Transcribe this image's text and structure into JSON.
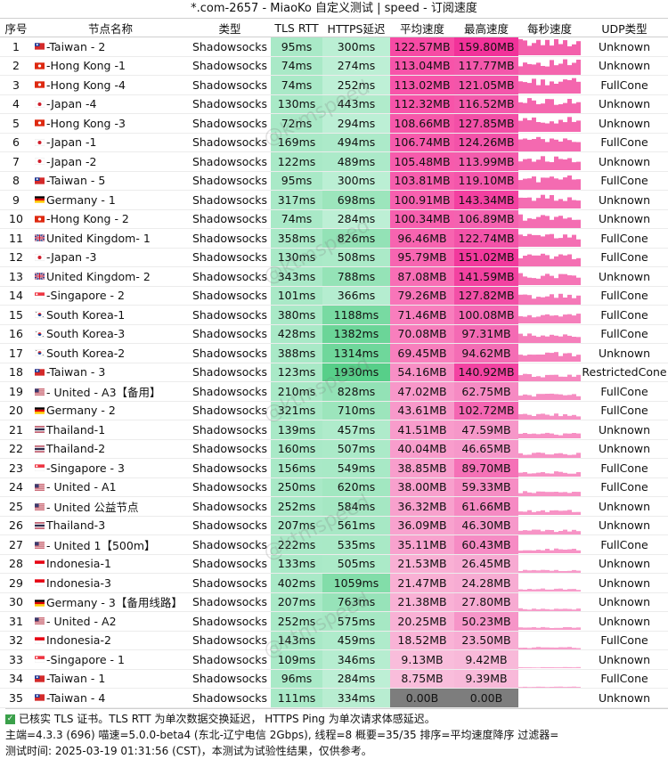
{
  "title": "*.com-2657 - MiaoKo 自定义测试 | speed - 订阅速度",
  "headers": [
    "序号",
    "节点名称",
    "类型",
    "TLS RTT",
    "HTTPS延迟",
    "平均速度",
    "最高速度",
    "每秒速度",
    "UDP类型"
  ],
  "watermark": "@ktmspeed",
  "rows": [
    {
      "idx": "1",
      "flag": "tw",
      "name": "-Taiwan - 2",
      "type": "Shadowsocks",
      "tls": "95ms",
      "https": "300ms",
      "avg": "122.57MB",
      "max": "159.80MB",
      "udp": "Unknown",
      "h": 0.1,
      "a": 1.0,
      "m": 1.0
    },
    {
      "idx": "2",
      "flag": "hk",
      "name": "-Hong Kong -1",
      "type": "Shadowsocks",
      "tls": "74ms",
      "https": "274ms",
      "avg": "113.04MB",
      "max": "117.77MB",
      "udp": "Unknown",
      "h": 0.08,
      "a": 0.92,
      "m": 0.74
    },
    {
      "idx": "3",
      "flag": "hk",
      "name": "-Hong Kong -4",
      "type": "Shadowsocks",
      "tls": "74ms",
      "https": "252ms",
      "avg": "113.02MB",
      "max": "121.05MB",
      "udp": "FullCone",
      "h": 0.07,
      "a": 0.92,
      "m": 0.76
    },
    {
      "idx": "4",
      "flag": "jp",
      "name": "-Japan -4",
      "type": "Shadowsocks",
      "tls": "130ms",
      "https": "443ms",
      "avg": "112.32MB",
      "max": "116.52MB",
      "udp": "Unknown",
      "h": 0.2,
      "a": 0.92,
      "m": 0.73
    },
    {
      "idx": "5",
      "flag": "hk",
      "name": "-Hong Kong -3",
      "type": "Shadowsocks",
      "tls": "72ms",
      "https": "294ms",
      "avg": "108.66MB",
      "max": "127.85MB",
      "udp": "Unknown",
      "h": 0.09,
      "a": 0.89,
      "m": 0.8
    },
    {
      "idx": "6",
      "flag": "jp",
      "name": "-Japan -1",
      "type": "Shadowsocks",
      "tls": "169ms",
      "https": "494ms",
      "avg": "106.74MB",
      "max": "124.26MB",
      "udp": "FullCone",
      "h": 0.23,
      "a": 0.87,
      "m": 0.78
    },
    {
      "idx": "7",
      "flag": "jp",
      "name": "-Japan -2",
      "type": "Shadowsocks",
      "tls": "122ms",
      "https": "489ms",
      "avg": "105.48MB",
      "max": "113.99MB",
      "udp": "Unknown",
      "h": 0.23,
      "a": 0.86,
      "m": 0.71
    },
    {
      "idx": "8",
      "flag": "tw",
      "name": "-Taiwan - 5",
      "type": "Shadowsocks",
      "tls": "95ms",
      "https": "300ms",
      "avg": "103.81MB",
      "max": "119.10MB",
      "udp": "FullCone",
      "h": 0.1,
      "a": 0.85,
      "m": 0.75
    },
    {
      "idx": "9",
      "flag": "de",
      "name": "Germany - 1",
      "type": "Shadowsocks",
      "tls": "317ms",
      "https": "698ms",
      "avg": "100.91MB",
      "max": "143.34MB",
      "udp": "Unknown",
      "h": 0.38,
      "a": 0.82,
      "m": 0.9
    },
    {
      "idx": "10",
      "flag": "hk",
      "name": "-Hong Kong - 2",
      "type": "Shadowsocks",
      "tls": "74ms",
      "https": "284ms",
      "avg": "100.34MB",
      "max": "106.89MB",
      "udp": "Unknown",
      "h": 0.08,
      "a": 0.82,
      "m": 0.67
    },
    {
      "idx": "11",
      "flag": "gb",
      "name": "United Kingdom- 1",
      "type": "Shadowsocks",
      "tls": "358ms",
      "https": "826ms",
      "avg": "96.46MB",
      "max": "122.74MB",
      "udp": "FullCone",
      "h": 0.46,
      "a": 0.79,
      "m": 0.77
    },
    {
      "idx": "12",
      "flag": "jp",
      "name": "-Japan -3",
      "type": "Shadowsocks",
      "tls": "130ms",
      "https": "508ms",
      "avg": "95.79MB",
      "max": "151.02MB",
      "udp": "FullCone",
      "h": 0.24,
      "a": 0.78,
      "m": 0.95
    },
    {
      "idx": "13",
      "flag": "gb",
      "name": "United Kingdom- 2",
      "type": "Shadowsocks",
      "tls": "343ms",
      "https": "788ms",
      "avg": "87.08MB",
      "max": "141.59MB",
      "udp": "Unknown",
      "h": 0.44,
      "a": 0.71,
      "m": 0.89
    },
    {
      "idx": "14",
      "flag": "sg",
      "name": "-Singapore - 2",
      "type": "Shadowsocks",
      "tls": "101ms",
      "https": "366ms",
      "avg": "79.26MB",
      "max": "127.82MB",
      "udp": "FullCone",
      "h": 0.15,
      "a": 0.65,
      "m": 0.8
    },
    {
      "idx": "15",
      "flag": "kr",
      "name": "South Korea-1",
      "type": "Shadowsocks",
      "tls": "380ms",
      "https": "1188ms",
      "avg": "71.46MB",
      "max": "100.08MB",
      "udp": "FullCone",
      "h": 0.7,
      "a": 0.58,
      "m": 0.63
    },
    {
      "idx": "16",
      "flag": "kr",
      "name": "South Korea-3",
      "type": "Shadowsocks",
      "tls": "428ms",
      "https": "1382ms",
      "avg": "70.08MB",
      "max": "97.31MB",
      "udp": "FullCone",
      "h": 0.82,
      "a": 0.57,
      "m": 0.61
    },
    {
      "idx": "17",
      "flag": "kr",
      "name": "South Korea-2",
      "type": "Shadowsocks",
      "tls": "388ms",
      "https": "1314ms",
      "avg": "69.45MB",
      "max": "94.62MB",
      "udp": "Unknown",
      "h": 0.78,
      "a": 0.57,
      "m": 0.59
    },
    {
      "idx": "18",
      "flag": "tw",
      "name": "-Taiwan - 3",
      "type": "Shadowsocks",
      "tls": "123ms",
      "https": "1930ms",
      "avg": "54.16MB",
      "max": "140.92MB",
      "udp": "RestrictedCone",
      "h": 1.0,
      "a": 0.44,
      "m": 0.88
    },
    {
      "idx": "19",
      "flag": "us",
      "name": "- United  - A3【备用】",
      "type": "Shadowsocks",
      "tls": "210ms",
      "https": "828ms",
      "avg": "47.02MB",
      "max": "62.75MB",
      "udp": "FullCone",
      "h": 0.46,
      "a": 0.38,
      "m": 0.39
    },
    {
      "idx": "20",
      "flag": "de",
      "name": "Germany - 2",
      "type": "Shadowsocks",
      "tls": "321ms",
      "https": "710ms",
      "avg": "43.61MB",
      "max": "102.72MB",
      "udp": "FullCone",
      "h": 0.38,
      "a": 0.36,
      "m": 0.64
    },
    {
      "idx": "21",
      "flag": "th",
      "name": "Thailand-1",
      "type": "Shadowsocks",
      "tls": "139ms",
      "https": "457ms",
      "avg": "41.51MB",
      "max": "47.59MB",
      "udp": "Unknown",
      "h": 0.21,
      "a": 0.34,
      "m": 0.3
    },
    {
      "idx": "22",
      "flag": "th",
      "name": "Thailand-2",
      "type": "Shadowsocks",
      "tls": "160ms",
      "https": "507ms",
      "avg": "40.04MB",
      "max": "46.65MB",
      "udp": "Unknown",
      "h": 0.24,
      "a": 0.33,
      "m": 0.29
    },
    {
      "idx": "23",
      "flag": "sg",
      "name": "-Singapore - 3",
      "type": "Shadowsocks",
      "tls": "156ms",
      "https": "549ms",
      "avg": "38.85MB",
      "max": "89.70MB",
      "udp": "FullCone",
      "h": 0.27,
      "a": 0.32,
      "m": 0.56
    },
    {
      "idx": "24",
      "flag": "us",
      "name": "- United - A1",
      "type": "Shadowsocks",
      "tls": "250ms",
      "https": "620ms",
      "avg": "38.00MB",
      "max": "59.33MB",
      "udp": "FullCone",
      "h": 0.32,
      "a": 0.31,
      "m": 0.37
    },
    {
      "idx": "25",
      "flag": "us",
      "name": "- United 公益节点",
      "type": "Shadowsocks",
      "tls": "252ms",
      "https": "584ms",
      "avg": "36.32MB",
      "max": "61.66MB",
      "udp": "Unknown",
      "h": 0.3,
      "a": 0.3,
      "m": 0.39
    },
    {
      "idx": "26",
      "flag": "th",
      "name": "Thailand-3",
      "type": "Shadowsocks",
      "tls": "207ms",
      "https": "561ms",
      "avg": "36.09MB",
      "max": "46.30MB",
      "udp": "Unknown",
      "h": 0.28,
      "a": 0.29,
      "m": 0.29
    },
    {
      "idx": "27",
      "flag": "us",
      "name": "- United 1【500m】",
      "type": "Shadowsocks",
      "tls": "222ms",
      "https": "535ms",
      "avg": "35.11MB",
      "max": "60.43MB",
      "udp": "FullCone",
      "h": 0.26,
      "a": 0.29,
      "m": 0.38
    },
    {
      "idx": "28",
      "flag": "id",
      "name": "Indonesia-1",
      "type": "Shadowsocks",
      "tls": "133ms",
      "https": "505ms",
      "avg": "21.53MB",
      "max": "26.45MB",
      "udp": "Unknown",
      "h": 0.24,
      "a": 0.18,
      "m": 0.17
    },
    {
      "idx": "29",
      "flag": "id",
      "name": "Indonesia-3",
      "type": "Shadowsocks",
      "tls": "402ms",
      "https": "1059ms",
      "avg": "21.47MB",
      "max": "24.28MB",
      "udp": "Unknown",
      "h": 0.61,
      "a": 0.18,
      "m": 0.15
    },
    {
      "idx": "30",
      "flag": "de",
      "name": "Germany - 3【备用线路】",
      "type": "Shadowsocks",
      "tls": "207ms",
      "https": "763ms",
      "avg": "21.38MB",
      "max": "27.80MB",
      "udp": "Unknown",
      "h": 0.42,
      "a": 0.17,
      "m": 0.17
    },
    {
      "idx": "31",
      "flag": "us",
      "name": "- United - A2",
      "type": "Shadowsocks",
      "tls": "252ms",
      "https": "575ms",
      "avg": "20.25MB",
      "max": "50.23MB",
      "udp": "Unknown",
      "h": 0.29,
      "a": 0.17,
      "m": 0.31
    },
    {
      "idx": "32",
      "flag": "id",
      "name": "Indonesia-2",
      "type": "Shadowsocks",
      "tls": "143ms",
      "https": "459ms",
      "avg": "18.52MB",
      "max": "23.50MB",
      "udp": "FullCone",
      "h": 0.21,
      "a": 0.15,
      "m": 0.15
    },
    {
      "idx": "33",
      "flag": "sg",
      "name": "-Singapore - 1",
      "type": "Shadowsocks",
      "tls": "109ms",
      "https": "346ms",
      "avg": "9.13MB",
      "max": "9.42MB",
      "udp": "Unknown",
      "h": 0.14,
      "a": 0.07,
      "m": 0.06
    },
    {
      "idx": "34",
      "flag": "tw",
      "name": "-Taiwan - 1",
      "type": "Shadowsocks",
      "tls": "96ms",
      "https": "284ms",
      "avg": "8.75MB",
      "max": "9.39MB",
      "udp": "FullCone",
      "h": 0.08,
      "a": 0.07,
      "m": 0.06
    },
    {
      "idx": "35",
      "flag": "tw",
      "name": "-Taiwan - 4",
      "type": "Shadowsocks",
      "tls": "111ms",
      "https": "334ms",
      "avg": "0.00B",
      "max": "0.00B",
      "udp": "Unknown",
      "h": 0.13,
      "a": 0,
      "m": 0
    }
  ],
  "footer": {
    "line1": "已核实 TLS 证书。TLS RTT 为单次数据交换延迟， HTTPS Ping 为单次请求体感延迟。",
    "line2": "主端=4.3.3 (696) 喵速=5.0.0-beta4 (东北-辽宁电信 2Gbps), 线程=8 概要=35/35 排序=平均速度降序 过滤器=",
    "line3": "测试时间:  2025-03-19 01:31:56 (CST)，本测试为试验性结果，仅供参考。"
  },
  "colors": {
    "tls_bg": "#a9e9c7",
    "https_low": "#c6f2dc",
    "https_high": "#57cf89",
    "avg_low": "#f9c6df",
    "avg_high": "#f74aa4",
    "max_low": "#f8c2dd",
    "max_high": "#f2329a",
    "zero_bg": "#7d7d7d",
    "spark": "#f35aa8"
  }
}
